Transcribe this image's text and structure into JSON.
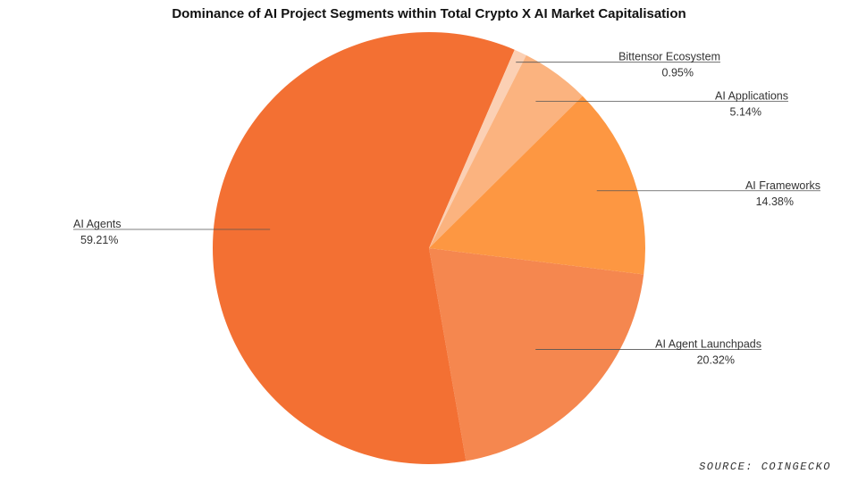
{
  "chart_data": {
    "type": "pie",
    "title": "Dominance of AI Project Segments within Total Crypto X AI Market Capitalisation",
    "slices": [
      {
        "name": "AI Agent Launchpads",
        "value": 20.32,
        "label": "20.32%",
        "color": "#f5874f"
      },
      {
        "name": "AI Agents",
        "value": 59.21,
        "label": "59.21%",
        "color": "#f37033"
      },
      {
        "name": "Bittensor Ecosystem",
        "value": 0.95,
        "label": "0.95%",
        "color": "#fbd0b4"
      },
      {
        "name": "AI Applications",
        "value": 5.14,
        "label": "5.14%",
        "color": "#fbb37f"
      },
      {
        "name": "AI Frameworks",
        "value": 14.38,
        "label": "14.38%",
        "color": "#fd9742"
      }
    ]
  },
  "source": "SOURCE: COINGECKO"
}
